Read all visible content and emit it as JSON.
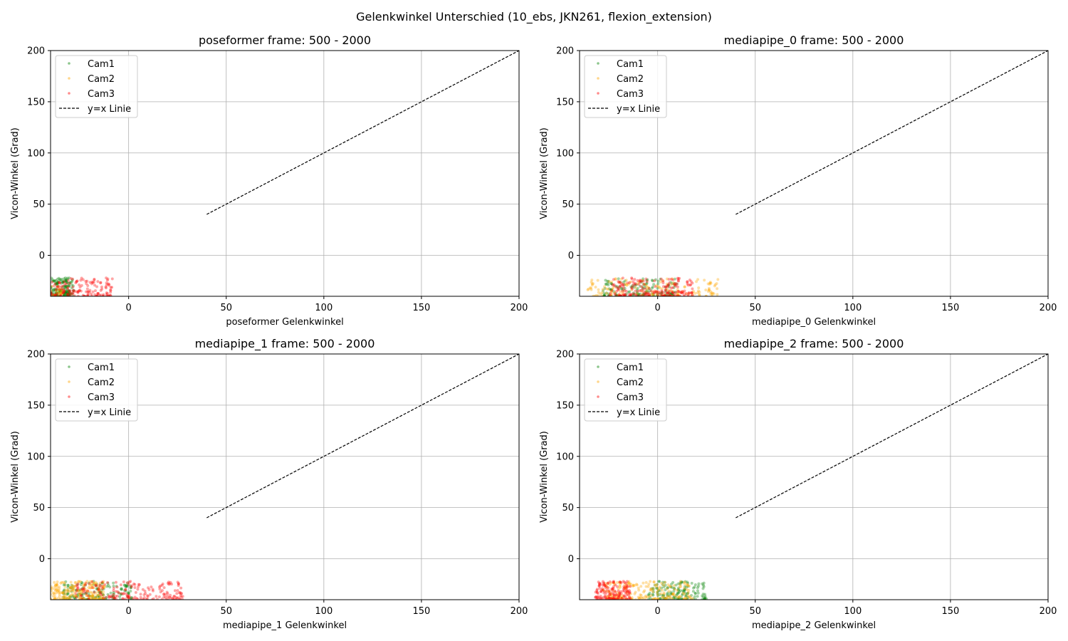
{
  "figure": {
    "suptitle": "Gelenkwinkel Unterschied (10_ebs, JKN261, flexion_extension)"
  },
  "colors": {
    "cam1": "#008000",
    "cam2": "#ffa500",
    "cam3": "#ff0000",
    "identity_line": "#000000",
    "grid": "#b0b0b0"
  },
  "chart_data": [
    {
      "type": "scatter",
      "title": "poseformer frame: 500 - 2000",
      "xlabel": "poseformer Gelenkwinkel",
      "ylabel": "Vicon-Winkel (Grad)",
      "xlim": [
        -40,
        200
      ],
      "ylim": [
        -40,
        200
      ],
      "xticks": [
        0,
        50,
        100,
        150,
        200
      ],
      "yticks": [
        0,
        50,
        100,
        150,
        200
      ],
      "grid": true,
      "legend_position": "top-left",
      "legend": [
        "Cam1",
        "Cam2",
        "Cam3",
        "y=x Linie"
      ],
      "identity_line": {
        "label": "y=x Linie",
        "x": [
          40,
          200
        ],
        "y": [
          40,
          200
        ]
      },
      "series": [
        {
          "name": "Cam1",
          "color": "#008000",
          "x_range": [
            -40,
            -28
          ],
          "y_range": [
            -40,
            -22
          ],
          "n": 150
        },
        {
          "name": "Cam2",
          "color": "#ffa500",
          "x_range": [
            -40,
            -34
          ],
          "y_range": [
            -40,
            -30
          ],
          "n": 25
        },
        {
          "name": "Cam3",
          "color": "#ff0000",
          "x_range": [
            -40,
            -8
          ],
          "y_range": [
            -40,
            -22
          ],
          "n": 150
        }
      ]
    },
    {
      "type": "scatter",
      "title": "mediapipe_0 frame: 500 - 2000",
      "xlabel": "mediapipe_0 Gelenkwinkel",
      "ylabel": "Vicon-Winkel (Grad)",
      "xlim": [
        -40,
        200
      ],
      "ylim": [
        -40,
        200
      ],
      "xticks": [
        0,
        50,
        100,
        150,
        200
      ],
      "yticks": [
        0,
        50,
        100,
        150,
        200
      ],
      "grid": true,
      "legend_position": "top-left",
      "legend": [
        "Cam1",
        "Cam2",
        "Cam3",
        "y=x Linie"
      ],
      "identity_line": {
        "label": "y=x Linie",
        "x": [
          40,
          200
        ],
        "y": [
          40,
          200
        ]
      },
      "series": [
        {
          "name": "Cam1",
          "color": "#008000",
          "x_range": [
            -28,
            10
          ],
          "y_range": [
            -40,
            -22
          ],
          "n": 150
        },
        {
          "name": "Cam2",
          "color": "#ffa500",
          "x_range": [
            -36,
            33
          ],
          "y_range": [
            -40,
            -22
          ],
          "n": 150
        },
        {
          "name": "Cam3",
          "color": "#ff0000",
          "x_range": [
            -25,
            18
          ],
          "y_range": [
            -40,
            -22
          ],
          "n": 200
        }
      ]
    },
    {
      "type": "scatter",
      "title": "mediapipe_1 frame: 500 - 2000",
      "xlabel": "mediapipe_1 Gelenkwinkel",
      "ylabel": "Vicon-Winkel (Grad)",
      "xlim": [
        -40,
        200
      ],
      "ylim": [
        -40,
        200
      ],
      "xticks": [
        0,
        50,
        100,
        150,
        200
      ],
      "yticks": [
        0,
        50,
        100,
        150,
        200
      ],
      "grid": true,
      "legend_position": "top-left",
      "legend": [
        "Cam1",
        "Cam2",
        "Cam3",
        "y=x Linie"
      ],
      "identity_line": {
        "label": "y=x Linie",
        "x": [
          40,
          200
        ],
        "y": [
          40,
          200
        ]
      },
      "series": [
        {
          "name": "Cam1",
          "color": "#008000",
          "x_range": [
            -34,
            2
          ],
          "y_range": [
            -40,
            -22
          ],
          "n": 150
        },
        {
          "name": "Cam2",
          "color": "#ffa500",
          "x_range": [
            -40,
            -12
          ],
          "y_range": [
            -40,
            -22
          ],
          "n": 200
        },
        {
          "name": "Cam3",
          "color": "#ff0000",
          "x_range": [
            -28,
            28
          ],
          "y_range": [
            -40,
            -22
          ],
          "n": 180
        }
      ]
    },
    {
      "type": "scatter",
      "title": "mediapipe_2 frame: 500 - 2000",
      "xlabel": "mediapipe_2 Gelenkwinkel",
      "ylabel": "Vicon-Winkel (Grad)",
      "xlim": [
        -40,
        200
      ],
      "ylim": [
        -40,
        200
      ],
      "xticks": [
        0,
        50,
        100,
        150,
        200
      ],
      "yticks": [
        0,
        50,
        100,
        150,
        200
      ],
      "grid": true,
      "legend_position": "top-left",
      "legend": [
        "Cam1",
        "Cam2",
        "Cam3",
        "y=x Linie"
      ],
      "identity_line": {
        "label": "y=x Linie",
        "x": [
          40,
          200
        ],
        "y": [
          40,
          200
        ]
      },
      "series": [
        {
          "name": "Cam1",
          "color": "#008000",
          "x_range": [
            -5,
            25
          ],
          "y_range": [
            -40,
            -22
          ],
          "n": 150
        },
        {
          "name": "Cam2",
          "color": "#ffa500",
          "x_range": [
            -28,
            18
          ],
          "y_range": [
            -40,
            -22
          ],
          "n": 200
        },
        {
          "name": "Cam3",
          "color": "#ff0000",
          "x_range": [
            -32,
            -14
          ],
          "y_range": [
            -40,
            -22
          ],
          "n": 150
        }
      ]
    }
  ]
}
